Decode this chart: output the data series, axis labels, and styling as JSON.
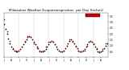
{
  "title": "Milwaukee Weather Evapotranspiration  per Day (Inches)",
  "title_fontsize": 3.0,
  "background_color": "#ffffff",
  "plot_bg_color": "#ffffff",
  "grid_color": "#999999",
  "series1_color": "#000000",
  "series2_color": "#cc0000",
  "legend_box_facecolor": "#cc0000",
  "legend_box_edgecolor": "#000000",
  "ylim": [
    0.0,
    0.38
  ],
  "yticks": [
    0.05,
    0.1,
    0.15,
    0.2,
    0.25,
    0.3,
    0.35
  ],
  "ytick_labels": [
    ".05",
    ".10",
    ".15",
    ".20",
    ".25",
    ".30",
    ".35"
  ],
  "marker_size": 1.5,
  "series1_x": [
    0,
    1,
    2,
    3,
    4,
    5,
    6,
    7,
    8,
    9,
    10,
    11,
    12,
    13,
    14,
    15,
    16,
    17,
    18,
    19,
    20,
    21,
    22,
    23,
    24,
    25,
    26,
    27,
    28,
    29,
    30,
    31,
    32,
    33,
    34,
    35,
    36,
    37,
    38,
    39,
    40,
    41,
    42,
    43,
    44,
    45,
    46,
    47,
    48,
    49,
    50,
    51,
    52,
    53,
    54,
    55,
    56,
    57,
    58,
    59,
    60,
    61,
    62,
    63,
    64,
    65,
    66,
    67,
    68,
    69
  ],
  "series1_y": [
    0.28,
    0.24,
    0.2,
    0.16,
    0.12,
    0.09,
    0.07,
    0.06,
    0.05,
    0.05,
    0.06,
    0.07,
    0.09,
    0.11,
    0.13,
    0.15,
    0.17,
    0.18,
    0.17,
    0.15,
    0.13,
    0.11,
    0.09,
    0.08,
    0.06,
    0.05,
    0.05,
    0.06,
    0.07,
    0.09,
    0.11,
    0.13,
    0.14,
    0.13,
    0.11,
    0.09,
    0.07,
    0.06,
    0.05,
    0.05,
    0.06,
    0.08,
    0.1,
    0.12,
    0.14,
    0.15,
    0.14,
    0.12,
    0.1,
    0.08,
    0.06,
    0.05,
    0.05,
    0.06,
    0.07,
    0.09,
    0.11,
    0.13,
    0.14,
    0.13,
    0.11,
    0.09,
    0.07,
    0.05,
    0.04,
    0.05,
    0.06,
    0.08,
    0.1,
    0.12
  ],
  "series2_x": [
    0,
    2,
    4,
    6,
    8,
    10,
    12,
    14,
    16,
    18,
    20,
    22,
    24,
    26,
    28,
    30,
    32,
    34,
    36,
    38,
    40,
    42,
    44,
    46,
    48,
    50,
    52,
    54,
    56,
    58,
    60,
    62,
    64,
    66,
    68
  ],
  "series2_y": [
    0.32,
    0.22,
    0.14,
    0.08,
    0.06,
    0.06,
    0.09,
    0.14,
    0.18,
    0.17,
    0.12,
    0.08,
    0.05,
    0.06,
    0.09,
    0.13,
    0.14,
    0.11,
    0.07,
    0.05,
    0.06,
    0.1,
    0.15,
    0.13,
    0.09,
    0.06,
    0.05,
    0.06,
    0.1,
    0.14,
    0.12,
    0.08,
    0.05,
    0.07,
    0.12
  ],
  "xlim": [
    0,
    70
  ],
  "xtick_positions": [
    0,
    5,
    10,
    15,
    20,
    25,
    30,
    35,
    40,
    45,
    50,
    55,
    60,
    65
  ],
  "xtick_labels": [
    "J",
    "A",
    "J",
    "O",
    "J",
    "A",
    "J",
    "O",
    "J",
    "A",
    "J",
    "O",
    "J",
    "A"
  ],
  "vline_positions": [
    10,
    20,
    30,
    40,
    50,
    60
  ],
  "figsize": [
    1.6,
    0.87
  ],
  "dpi": 100
}
